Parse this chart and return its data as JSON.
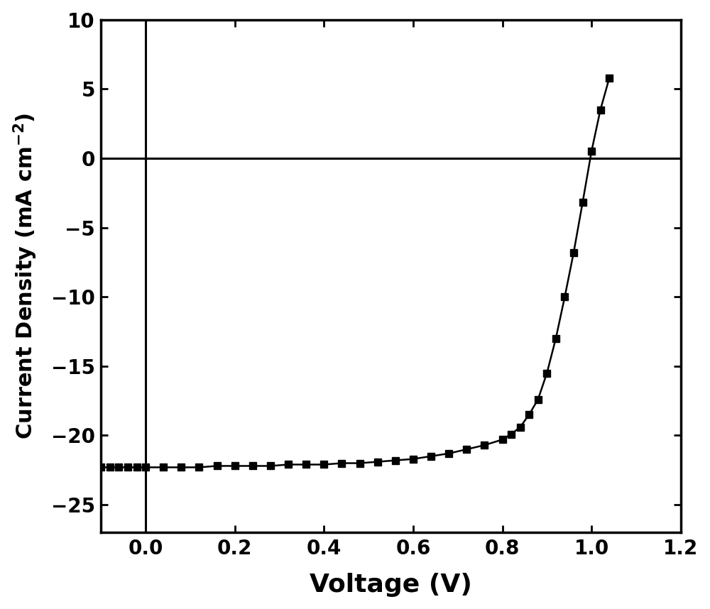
{
  "xlabel": "Voltage (V)",
  "xlim": [
    -0.1,
    1.2
  ],
  "ylim": [
    -27,
    10
  ],
  "xticks": [
    0.0,
    0.2,
    0.4,
    0.6,
    0.8,
    1.0,
    1.2
  ],
  "yticks": [
    -25,
    -20,
    -15,
    -10,
    -5,
    0,
    5,
    10
  ],
  "line_color": "#000000",
  "marker": "s",
  "marker_size": 7,
  "line_width": 1.8,
  "background_color": "#ffffff",
  "voltage_data": [
    -0.1,
    -0.08,
    -0.06,
    -0.04,
    -0.02,
    0.0,
    0.04,
    0.08,
    0.12,
    0.16,
    0.2,
    0.24,
    0.28,
    0.32,
    0.36,
    0.4,
    0.44,
    0.48,
    0.52,
    0.56,
    0.6,
    0.64,
    0.68,
    0.72,
    0.76,
    0.8,
    0.82,
    0.84,
    0.86,
    0.88,
    0.9,
    0.92,
    0.94,
    0.96,
    0.98,
    1.0,
    1.02,
    1.04
  ],
  "current_data": [
    -22.3,
    -22.3,
    -22.3,
    -22.3,
    -22.3,
    -22.3,
    -22.3,
    -22.3,
    -22.3,
    -22.2,
    -22.2,
    -22.2,
    -22.2,
    -22.1,
    -22.1,
    -22.1,
    -22.0,
    -22.0,
    -21.9,
    -21.8,
    -21.7,
    -21.5,
    -21.3,
    -21.0,
    -20.7,
    -20.3,
    -19.9,
    -19.4,
    -18.5,
    -17.4,
    -15.5,
    -13.0,
    -10.0,
    -6.8,
    -3.2,
    0.5,
    3.5,
    5.8
  ]
}
